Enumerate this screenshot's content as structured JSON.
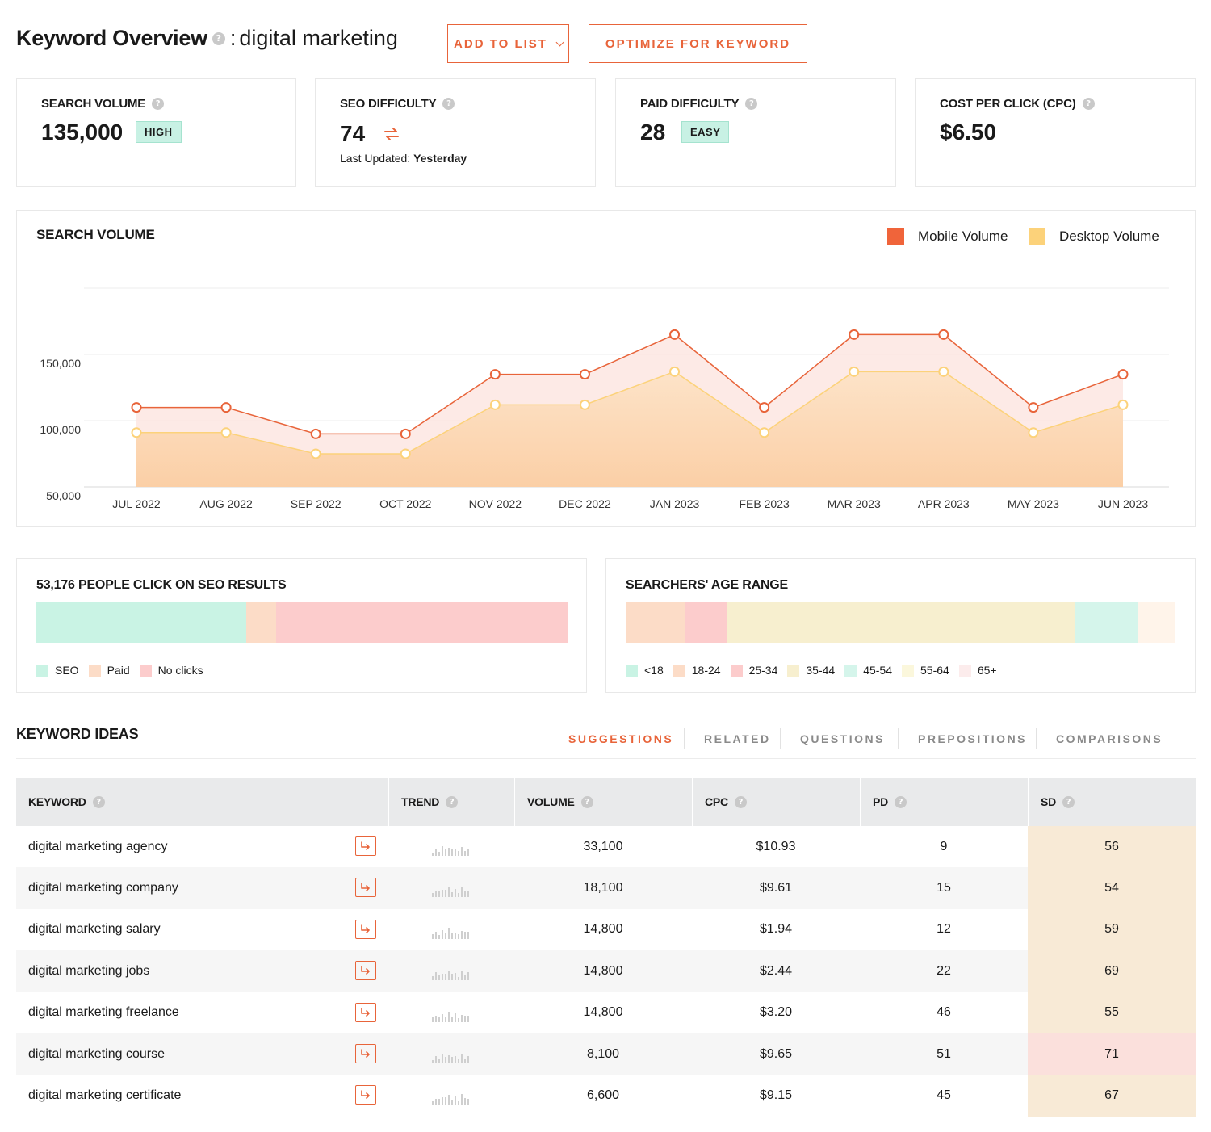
{
  "header": {
    "title_bold": "Keyword Overview",
    "title_separator": ":",
    "keyword": "digital marketing",
    "add_to_list_label": "ADD TO LIST",
    "optimize_label": "OPTIMIZE FOR KEYWORD"
  },
  "metrics": {
    "search_volume": {
      "label": "SEARCH VOLUME",
      "value": "135,000",
      "badge": "HIGH"
    },
    "seo_difficulty": {
      "label": "SEO DIFFICULTY",
      "value": "74",
      "updated_prefix": "Last Updated:",
      "updated_value": "Yesterday"
    },
    "paid_difficulty": {
      "label": "PAID DIFFICULTY",
      "value": "28",
      "badge": "EASY"
    },
    "cpc": {
      "label": "COST PER CLICK (CPC)",
      "value": "$6.50"
    }
  },
  "volume_chart": {
    "title": "SEARCH VOLUME",
    "legend": [
      {
        "name": "Mobile Volume",
        "color": "#f0643a"
      },
      {
        "name": "Desktop Volume",
        "color": "#fcd27a"
      }
    ]
  },
  "chart_data": {
    "type": "area",
    "title": "SEARCH VOLUME",
    "categories": [
      "JUL 2022",
      "AUG 2022",
      "SEP 2022",
      "OCT 2022",
      "NOV 2022",
      "DEC 2022",
      "JAN 2023",
      "FEB 2023",
      "MAR 2023",
      "APR 2023",
      "MAY 2023",
      "JUN 2023"
    ],
    "y_ticks": [
      "50,000",
      "100,000",
      "150,000"
    ],
    "ylim": [
      50000,
      200000
    ],
    "grid": true,
    "legend_position": "top-right",
    "series": [
      {
        "name": "Mobile Volume",
        "color": "#e8643a",
        "values": [
          110000,
          110000,
          90000,
          90000,
          135000,
          135000,
          165000,
          110000,
          165000,
          165000,
          110000,
          135000
        ]
      },
      {
        "name": "Desktop Volume",
        "color": "#fcd27a",
        "values": [
          91000,
          91000,
          75000,
          75000,
          112000,
          112000,
          137000,
          91000,
          137000,
          137000,
          91000,
          112000
        ]
      }
    ]
  },
  "clicks": {
    "title": "53,176 PEOPLE CLICK ON SEO RESULTS",
    "segments": [
      {
        "name": "SEO",
        "share": 0.395,
        "color": "#c9f3e4"
      },
      {
        "name": "Paid",
        "share": 0.057,
        "color": "#fcdcc7"
      },
      {
        "name": "No clicks",
        "share": 0.548,
        "color": "#fccccc"
      }
    ]
  },
  "age_range": {
    "title": "SEARCHERS' AGE RANGE",
    "segments": [
      {
        "name": "<18",
        "share": 0.0,
        "color": "#c9f3e4"
      },
      {
        "name": "18-24",
        "share": 0.108,
        "color": "#fcdcc7"
      },
      {
        "name": "25-34",
        "share": 0.076,
        "color": "#fccccc"
      },
      {
        "name": "35-44",
        "share": 0.632,
        "color": "#f7efcf"
      },
      {
        "name": "45-54",
        "share": 0.115,
        "color": "#d5f5eb"
      },
      {
        "name": "55-64",
        "share": 0.0,
        "color": "#fbf7dc"
      },
      {
        "name": "65+",
        "share": 0.069,
        "color": "#fff4ea"
      }
    ],
    "legend_colors": [
      "#c9f3e4",
      "#fcdcc7",
      "#fccccc",
      "#f7efcf",
      "#d5f5eb",
      "#fbf7dc",
      "#fcecec"
    ]
  },
  "keyword_ideas": {
    "title": "KEYWORD IDEAS",
    "tabs": [
      {
        "label": "SUGGESTIONS",
        "active": true
      },
      {
        "label": "RELATED",
        "active": false
      },
      {
        "label": "QUESTIONS",
        "active": false
      },
      {
        "label": "PREPOSITIONS",
        "active": false
      },
      {
        "label": "COMPARISONS",
        "active": false
      }
    ],
    "columns": [
      "KEYWORD",
      "TREND",
      "VOLUME",
      "CPC",
      "PD",
      "SD"
    ],
    "rows": [
      {
        "keyword": "digital marketing agency",
        "volume": "33,100",
        "cpc": "$10.93",
        "pd": "9",
        "sd": "56",
        "sd_color": "#f8ead6"
      },
      {
        "keyword": "digital marketing company",
        "volume": "18,100",
        "cpc": "$9.61",
        "pd": "15",
        "sd": "54",
        "sd_color": "#f8ead6"
      },
      {
        "keyword": "digital marketing salary",
        "volume": "14,800",
        "cpc": "$1.94",
        "pd": "12",
        "sd": "59",
        "sd_color": "#f8ead6"
      },
      {
        "keyword": "digital marketing jobs",
        "volume": "14,800",
        "cpc": "$2.44",
        "pd": "22",
        "sd": "69",
        "sd_color": "#f8ead6"
      },
      {
        "keyword": "digital marketing freelance",
        "volume": "14,800",
        "cpc": "$3.20",
        "pd": "46",
        "sd": "55",
        "sd_color": "#f8ead6"
      },
      {
        "keyword": "digital marketing course",
        "volume": "8,100",
        "cpc": "$9.65",
        "pd": "51",
        "sd": "71",
        "sd_color": "#fbe0dc"
      },
      {
        "keyword": "digital marketing certificate",
        "volume": "6,600",
        "cpc": "$9.15",
        "pd": "45",
        "sd": "67",
        "sd_color": "#f8ead6"
      }
    ]
  },
  "colors": {
    "accent": "#e8643a",
    "badge_green": "#c8f1e4",
    "header_bg": "#e9eaeb"
  }
}
